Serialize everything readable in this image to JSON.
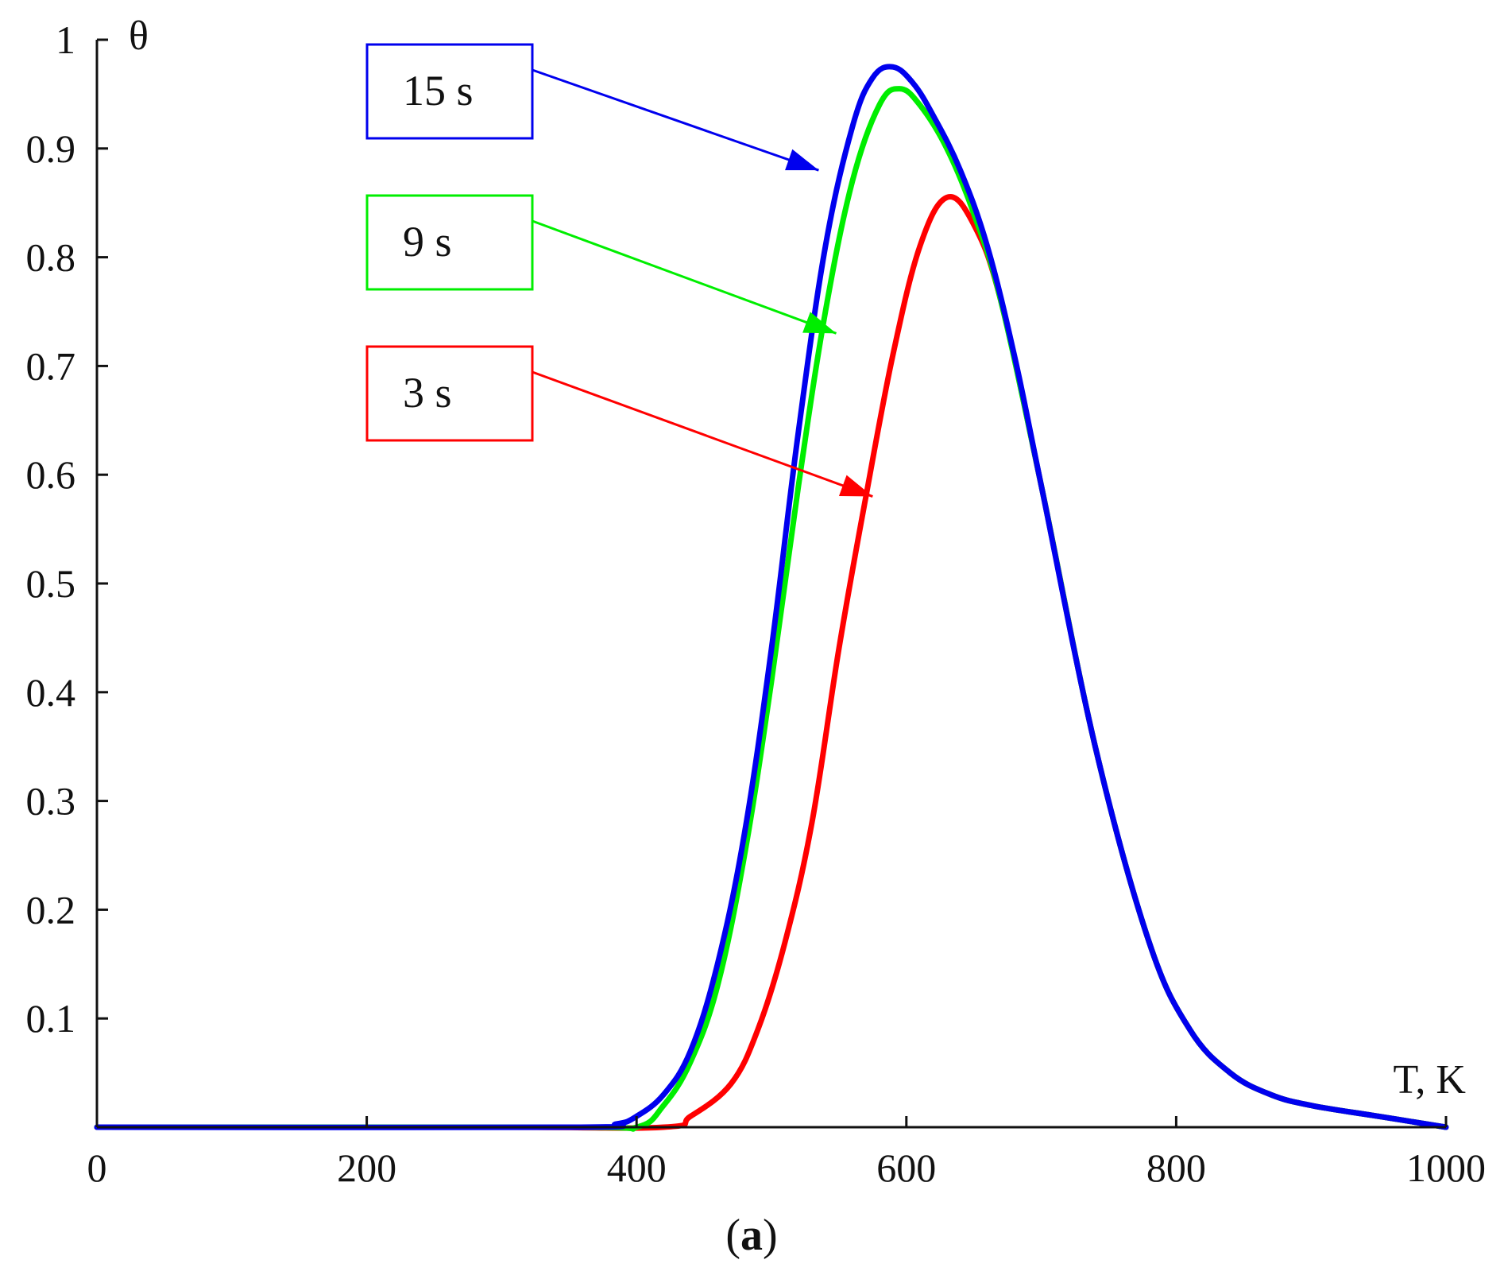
{
  "chart_data": {
    "type": "line",
    "caption": {
      "open": "(",
      "letter": "a",
      "close": ")"
    },
    "xlabel": "T, K",
    "ylabel": "θ",
    "xlim": [
      0,
      1000
    ],
    "ylim": [
      0,
      1
    ],
    "x_ticks": [
      0,
      200,
      400,
      600,
      800,
      1000
    ],
    "x_tick_labels": [
      "0",
      "200",
      "400",
      "600",
      "800",
      "1000"
    ],
    "y_ticks": [
      0.1,
      0.2,
      0.3,
      0.4,
      0.5,
      0.6,
      0.7,
      0.8,
      0.9,
      1
    ],
    "y_tick_labels": [
      "0.1",
      "0.2",
      "0.3",
      "0.4",
      "0.5",
      "0.6",
      "0.7",
      "0.8",
      "0.9",
      "1"
    ],
    "grid": false,
    "series": [
      {
        "name": "3 s",
        "color": "#ff0000",
        "x": [
          0,
          300,
          420,
          440,
          470,
          490,
          510,
          530,
          550,
          570,
          590,
          610,
          630,
          650,
          670,
          700,
          740,
          780,
          810,
          840,
          870,
          900,
          950,
          1000
        ],
        "y": [
          0,
          0,
          0,
          0.01,
          0.04,
          0.09,
          0.17,
          0.28,
          0.44,
          0.58,
          0.71,
          0.81,
          0.855,
          0.83,
          0.76,
          0.59,
          0.35,
          0.17,
          0.09,
          0.05,
          0.03,
          0.02,
          0.01,
          0
        ]
      },
      {
        "name": "9 s",
        "color": "#00ee00",
        "x": [
          0,
          350,
          400,
          420,
          440,
          460,
          480,
          500,
          520,
          540,
          560,
          580,
          595,
          610,
          630,
          650,
          670,
          700,
          740,
          780,
          810,
          840,
          870,
          900,
          950,
          1000
        ],
        "y": [
          0,
          0,
          0,
          0.02,
          0.06,
          0.13,
          0.25,
          0.41,
          0.59,
          0.75,
          0.87,
          0.94,
          0.955,
          0.94,
          0.9,
          0.84,
          0.76,
          0.59,
          0.35,
          0.17,
          0.09,
          0.05,
          0.03,
          0.02,
          0.01,
          0
        ]
      },
      {
        "name": "15 s",
        "color": "#0000ee",
        "x": [
          0,
          350,
          385,
          400,
          420,
          440,
          460,
          480,
          500,
          520,
          540,
          560,
          575,
          590,
          605,
          620,
          640,
          660,
          680,
          700,
          740,
          780,
          810,
          840,
          870,
          900,
          950,
          1000
        ],
        "y": [
          0,
          0,
          0.003,
          0.01,
          0.03,
          0.07,
          0.15,
          0.27,
          0.44,
          0.64,
          0.81,
          0.92,
          0.965,
          0.975,
          0.96,
          0.93,
          0.88,
          0.81,
          0.71,
          0.59,
          0.35,
          0.17,
          0.09,
          0.05,
          0.03,
          0.02,
          0.01,
          0
        ]
      }
    ],
    "legend_boxes": [
      {
        "label": "15 s",
        "color": "#0000ee",
        "arrow_to": {
          "x": 535,
          "y": 0.88
        }
      },
      {
        "label": "9 s",
        "color": "#00ee00",
        "arrow_to": {
          "x": 548,
          "y": 0.73
        }
      },
      {
        "label": "3 s",
        "color": "#ff0000",
        "arrow_to": {
          "x": 575,
          "y": 0.58
        }
      }
    ]
  }
}
